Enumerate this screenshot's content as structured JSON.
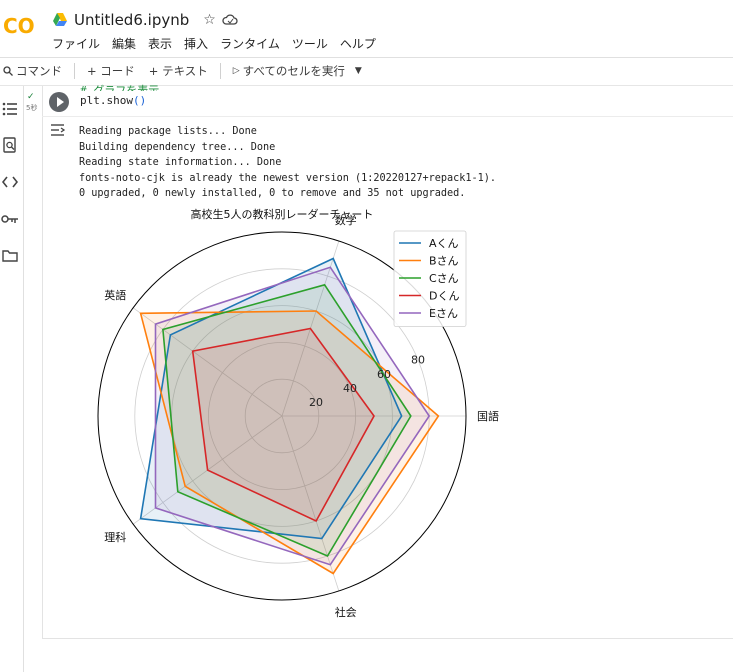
{
  "header": {
    "logo_text": "CO",
    "notebook_title": "Untitled6.ipynb",
    "star_icon": "star-icon",
    "cloud_icon": "cloud-icon",
    "menu": [
      "ファイル",
      "編集",
      "表示",
      "挿入",
      "ランタイム",
      "ツール",
      "ヘルプ"
    ]
  },
  "toolbar": {
    "command_label": "コマンド",
    "add_code_label": "+ コード",
    "add_text_label": "+ テキスト",
    "run_all_label": "すべてのセルを実行"
  },
  "cell": {
    "exec_time": "5秒",
    "comment_line": "# グラフを表示",
    "code_fn": "plt.show",
    "code_parens": "()",
    "output_lines": [
      "Reading package lists... Done",
      "Building dependency tree... Done",
      "Reading state information... Done",
      "fonts-noto-cjk is already the newest version (1:20220127+repack1-1).",
      "0 upgraded, 0 newly installed, 0 to remove and 35 not upgraded."
    ]
  },
  "chart_data": {
    "type": "radar",
    "title": "高校生5人の教科別レーダーチャート",
    "categories": [
      "国語",
      "数学",
      "英語",
      "理科",
      "社会"
    ],
    "rlim": [
      0,
      100
    ],
    "r_ticks": [
      20,
      40,
      60,
      80
    ],
    "legend_position": "upper-right",
    "series": [
      {
        "name": "Aくん",
        "color": "#1f77b4",
        "values": [
          65,
          90,
          75,
          95,
          70
        ]
      },
      {
        "name": "Bさん",
        "color": "#ff7f0e",
        "values": [
          85,
          60,
          95,
          65,
          90
        ]
      },
      {
        "name": "Cさん",
        "color": "#2ca02c",
        "values": [
          70,
          75,
          80,
          70,
          80
        ]
      },
      {
        "name": "Dくん",
        "color": "#d62728",
        "values": [
          50,
          50,
          60,
          50,
          60
        ]
      },
      {
        "name": "Eさん",
        "color": "#9467bd",
        "values": [
          80,
          85,
          85,
          85,
          85
        ]
      }
    ]
  }
}
